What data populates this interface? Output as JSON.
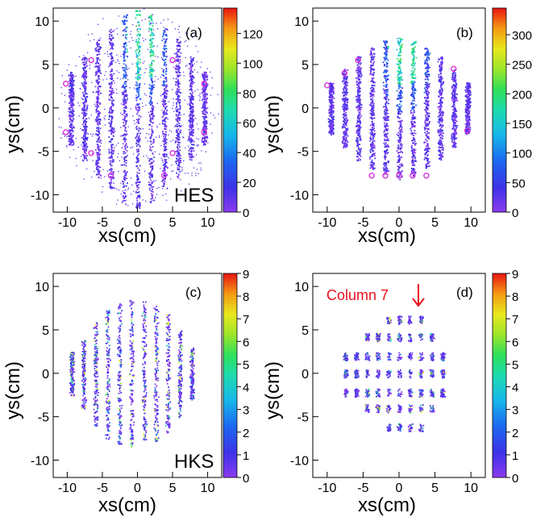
{
  "figure": {
    "panels": [
      {
        "tag": "(a)",
        "name": "HES",
        "xlabel": "xs(cm)",
        "ylabel": "ys(cm)",
        "x_ticks": [
          "-10",
          "-5",
          "0",
          "5",
          "10"
        ],
        "y_ticks": [
          "10",
          "5",
          "0",
          "-5",
          "-10"
        ],
        "colorbar_ticks": [
          "0",
          "20",
          "40",
          "60",
          "80",
          "100",
          "120"
        ],
        "note": ""
      },
      {
        "tag": "(b)",
        "name": "",
        "xlabel": "xs(cm)",
        "ylabel": "ys(cm)",
        "x_ticks": [
          "-10",
          "-5",
          "0",
          "5",
          "10"
        ],
        "y_ticks": [
          "10",
          "5",
          "0",
          "-5",
          "-10"
        ],
        "colorbar_ticks": [
          "0",
          "50",
          "100",
          "150",
          "200",
          "250",
          "300"
        ],
        "note": ""
      },
      {
        "tag": "(c)",
        "name": "HKS",
        "xlabel": "xs(cm)",
        "ylabel": "ys(cm)",
        "x_ticks": [
          "-10",
          "-5",
          "0",
          "5",
          "10"
        ],
        "y_ticks": [
          "10",
          "5",
          "0",
          "-5",
          "-10"
        ],
        "colorbar_ticks": [
          "0",
          "1",
          "2",
          "3",
          "4",
          "5",
          "6",
          "7",
          "8",
          "9"
        ],
        "note": ""
      },
      {
        "tag": "(d)",
        "name": "",
        "xlabel": "xs(cm)",
        "ylabel": "ys(cm)",
        "x_ticks": [
          "-10",
          "-5",
          "0",
          "5",
          "10"
        ],
        "y_ticks": [
          "10",
          "5",
          "0",
          "-5",
          "-10"
        ],
        "colorbar_ticks": [
          "0",
          "1",
          "2",
          "3",
          "4",
          "5",
          "6",
          "7",
          "8",
          "9"
        ],
        "note": "Column 7"
      }
    ]
  },
  "chart_data": [
    {
      "type": "heatmap",
      "tag": "(a)",
      "name": "HES",
      "xlabel": "xs(cm)",
      "ylabel": "ys(cm)",
      "xlim": [
        -12,
        12
      ],
      "ylim": [
        -12,
        11.5
      ],
      "zlim": [
        0,
        137
      ],
      "colorbar_ticks": [
        0,
        20,
        40,
        60,
        80,
        100,
        120
      ],
      "columns_x": [
        -9.5,
        -7.6,
        -5.7,
        -3.8,
        -1.9,
        0,
        1.9,
        3.8,
        5.7,
        7.6,
        9.5
      ],
      "column_half_height": [
        4.2,
        6.0,
        8.0,
        9.2,
        10.8,
        11.5,
        10.8,
        9.2,
        8.0,
        6.0,
        4.2
      ],
      "peak_density_x": 0.8,
      "peak_density_y": 8.0,
      "markers": [
        [
          -10.2,
          2.8
        ],
        [
          -10.2,
          -2.8
        ],
        [
          -6.6,
          5.5
        ],
        [
          -6.6,
          -5.2
        ],
        [
          -3.8,
          -7.8
        ],
        [
          3.8,
          -7.8
        ],
        [
          5.0,
          5.5
        ],
        [
          5.0,
          -5.2
        ],
        [
          9.5,
          2.8
        ],
        [
          9.5,
          -2.8
        ]
      ],
      "colors": {
        "marker": "#d633d6"
      }
    },
    {
      "type": "heatmap",
      "tag": "(b)",
      "xlabel": "xs(cm)",
      "ylabel": "ys(cm)",
      "xlim": [
        -12,
        12
      ],
      "ylim": [
        -12,
        11.5
      ],
      "zlim": [
        0,
        345
      ],
      "colorbar_ticks": [
        0,
        50,
        100,
        150,
        200,
        250,
        300
      ],
      "columns_x": [
        -9.5,
        -7.6,
        -5.7,
        -3.8,
        -1.9,
        0,
        1.9,
        3.8,
        5.7,
        7.6,
        9.5
      ],
      "column_half_height": [
        3.0,
        4.5,
        6.0,
        7.0,
        7.8,
        8.2,
        7.8,
        7.0,
        6.0,
        4.5,
        3.0
      ],
      "peak_density_x": 0.8,
      "peak_density_y": 7.5,
      "markers": [
        [
          -10.0,
          2.6
        ],
        [
          -7.6,
          4.0
        ],
        [
          -5.7,
          5.5
        ],
        [
          -3.8,
          -7.8
        ],
        [
          -1.9,
          -7.8
        ],
        [
          0,
          -7.8
        ],
        [
          1.9,
          -7.8
        ],
        [
          3.8,
          -7.8
        ],
        [
          7.6,
          4.5
        ],
        [
          9.5,
          -2.6
        ]
      ],
      "colors": {
        "marker": "#d633d6"
      }
    },
    {
      "type": "heatmap",
      "tag": "(c)",
      "name": "HKS",
      "xlabel": "xs(cm)",
      "ylabel": "ys(cm)",
      "xlim": [
        -12,
        12
      ],
      "ylim": [
        -12,
        11.5
      ],
      "zlim": [
        0,
        9
      ],
      "colorbar_ticks": [
        0,
        1,
        2,
        3,
        4,
        5,
        6,
        7,
        8,
        9
      ],
      "columns_x": [
        -9.4,
        -7.7,
        -6.0,
        -4.3,
        -2.6,
        -0.9,
        0.9,
        2.6,
        4.3,
        6.0,
        7.7
      ],
      "column_half_height": [
        2.5,
        4.0,
        6.0,
        7.5,
        8.2,
        8.5,
        8.3,
        7.8,
        6.8,
        5.0,
        3.0
      ],
      "colors": {
        "marker": "#e8101c"
      }
    },
    {
      "type": "heatmap",
      "tag": "(d)",
      "xlabel": "xs(cm)",
      "ylabel": "ys(cm)",
      "xlim": [
        -12,
        12
      ],
      "ylim": [
        -12,
        11.5
      ],
      "zlim": [
        0,
        9
      ],
      "colorbar_ticks": [
        0,
        1,
        2,
        3,
        4,
        5,
        6,
        7,
        8,
        9
      ],
      "columns_x": [
        -7.5,
        -6.0,
        -4.5,
        -3.0,
        -1.5,
        0,
        1.5,
        3.0,
        4.5,
        6.0
      ],
      "column_half_height": [
        2.0,
        3.0,
        4.5,
        5.5,
        6.2,
        6.5,
        6.5,
        6.0,
        4.8,
        2.5
      ],
      "rows_y": [
        6.2,
        4.2,
        2.0,
        0,
        -2.2,
        -4.0,
        -6.2
      ],
      "annotation": {
        "text": "Column 7",
        "points_to": [
          1.5,
          6.6
        ]
      },
      "colors": {
        "marker": "#e8101c",
        "annotation": "#e8101c"
      }
    }
  ]
}
